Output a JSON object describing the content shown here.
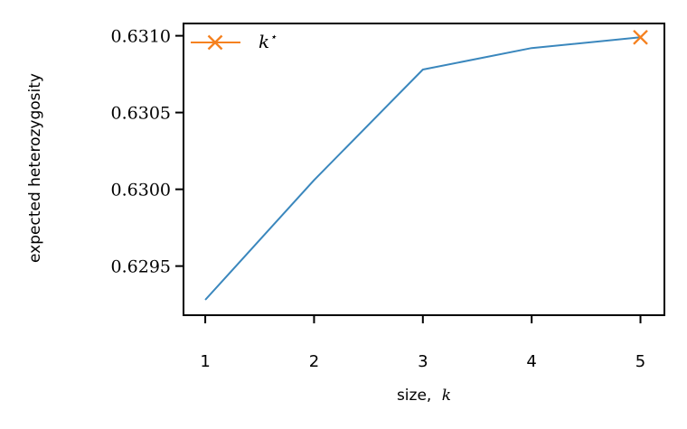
{
  "chart_data": {
    "type": "line",
    "x": [
      1,
      2,
      3,
      4,
      5
    ],
    "series": [
      {
        "values": [
          0.62928,
          0.63006,
          0.63078,
          0.63092,
          0.63099
        ],
        "color": "#3a87bd"
      }
    ],
    "marker_series": {
      "name": "k*",
      "x": [
        5
      ],
      "y": [
        0.63099
      ],
      "marker": "x",
      "color": "#f5811f"
    },
    "xlabel_prefix": "size,",
    "xlabel_var": "k",
    "ylabel": "expected heterozygosity",
    "xticks": [
      "1",
      "2",
      "3",
      "4",
      "5"
    ],
    "yticks": [
      "0.6295",
      "0.6300",
      "0.6305",
      "0.6310"
    ],
    "ytick_values": [
      0.6295,
      0.63,
      0.6305,
      0.631
    ],
    "xlim": [
      0.8,
      5.22
    ],
    "ylim": [
      0.62918,
      0.63108
    ],
    "grid": false,
    "legend_position": "top-left",
    "legend": {
      "label_base": "k",
      "label_sup": "⋆"
    }
  }
}
